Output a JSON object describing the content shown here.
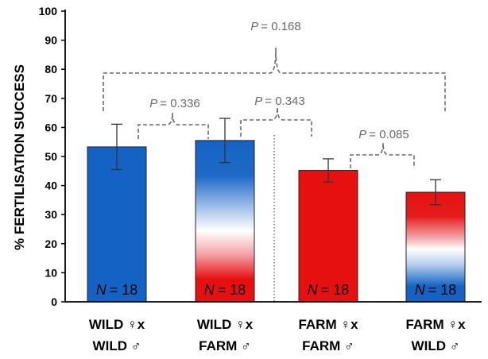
{
  "chart_data": {
    "type": "bar",
    "ylabel": "% FERTILISATION SUCCESS",
    "ylim": [
      0,
      100
    ],
    "yticks": [
      "0",
      "10",
      "20",
      "30",
      "40",
      "50",
      "60",
      "70",
      "80",
      "90",
      "100"
    ],
    "categories": [
      {
        "line1": "WILD ♀x",
        "line2": "WILD ♂"
      },
      {
        "line1": "WILD ♀x",
        "line2": "FARM ♂"
      },
      {
        "line1": "FARM ♀x",
        "line2": "FARM ♂"
      },
      {
        "line1": "FARM ♀x",
        "line2": "WILD ♂"
      }
    ],
    "values": [
      53.3,
      55.5,
      45.2,
      37.7
    ],
    "error": [
      7.8,
      7.6,
      4.0,
      4.3
    ],
    "n_labels": [
      "= 18",
      "= 18",
      "= 18",
      "= 18"
    ],
    "n_symbol": "N",
    "fills": [
      "blue",
      "blue-white-red",
      "red",
      "red-white-blue"
    ],
    "colors": {
      "blue": "#1463c4",
      "red": "#e61010",
      "white": "#ffffff"
    },
    "comparisons": [
      {
        "label": "= 0.168",
        "symbol": "P"
      },
      {
        "label": "= 0.336",
        "symbol": "P"
      },
      {
        "label": "= 0.343",
        "symbol": "P"
      },
      {
        "label": "= 0.085",
        "symbol": "P"
      }
    ],
    "grid": false,
    "legend": "none"
  }
}
